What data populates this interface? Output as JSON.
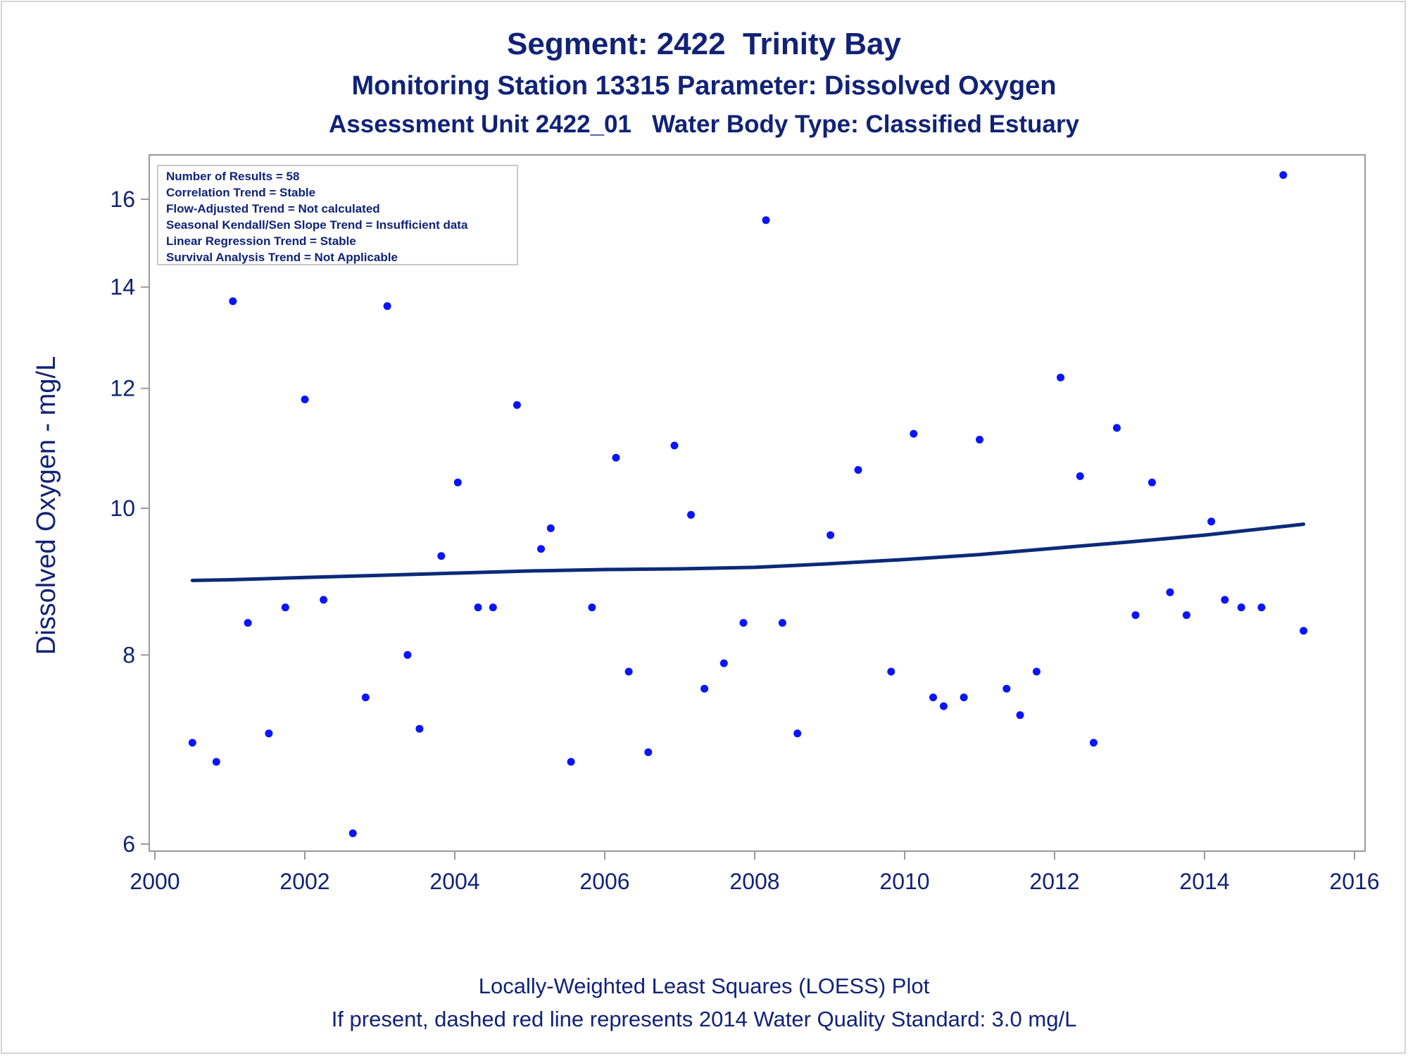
{
  "chart_data": {
    "type": "scatter",
    "title": "Segment: 2422  Trinity Bay",
    "subtitles": [
      "Monitoring Station 13315 Parameter: Dissolved Oxygen",
      "Assessment Unit 2422_01   Water Body Type: Classified Estuary"
    ],
    "xlabel": "",
    "ylabel": "Dissolved Oxygen - mg/L",
    "xlim": [
      2000,
      2016
    ],
    "ylim": [
      5.9,
      16.8
    ],
    "y_scale": "log",
    "grid": false,
    "x_ticks": [
      "2000",
      "2002",
      "2004",
      "2006",
      "2008",
      "2010",
      "2012",
      "2014",
      "2016"
    ],
    "y_ticks": [
      "6",
      "8",
      "10",
      "12",
      "14",
      "16"
    ],
    "stats_box": {
      "placement": "top-left",
      "lines": [
        "Number of Results = 58",
        "Correlation Trend = Stable",
        "Flow-Adjusted Trend = Not calculated",
        "Seasonal Kendall/Sen Slope Trend = Insufficient data",
        "Linear Regression Trend = Stable",
        "Survival Analysis Trend = Not Applicable"
      ]
    },
    "footnotes": [
      "Locally-Weighted Least Squares (LOESS) Plot",
      "If present, dashed red line represents 2014 Water Quality Standard: 3.0 mg/L"
    ],
    "series": [
      {
        "type": "scatter",
        "color": "#0a14ff",
        "points": [
          [
            2000.5,
            7.0
          ],
          [
            2000.82,
            6.8
          ],
          [
            2001.04,
            13.7
          ],
          [
            2001.24,
            8.4
          ],
          [
            2001.52,
            7.1
          ],
          [
            2001.74,
            8.6
          ],
          [
            2002.0,
            11.8
          ],
          [
            2002.25,
            8.7
          ],
          [
            2002.64,
            6.1
          ],
          [
            2002.81,
            7.5
          ],
          [
            2003.1,
            13.6
          ],
          [
            2003.37,
            8.0
          ],
          [
            2003.53,
            7.15
          ],
          [
            2003.82,
            9.3
          ],
          [
            2004.04,
            10.4
          ],
          [
            2004.31,
            8.6
          ],
          [
            2004.51,
            8.6
          ],
          [
            2004.83,
            11.7
          ],
          [
            2005.15,
            9.4
          ],
          [
            2005.28,
            9.7
          ],
          [
            2005.55,
            6.8
          ],
          [
            2005.83,
            8.6
          ],
          [
            2006.15,
            10.8
          ],
          [
            2006.32,
            7.8
          ],
          [
            2006.58,
            6.9
          ],
          [
            2006.93,
            11.0
          ],
          [
            2007.15,
            9.9
          ],
          [
            2007.33,
            7.6
          ],
          [
            2007.59,
            7.9
          ],
          [
            2007.85,
            8.4
          ],
          [
            2008.15,
            15.5
          ],
          [
            2008.37,
            8.4
          ],
          [
            2008.57,
            7.1
          ],
          [
            2009.01,
            9.6
          ],
          [
            2009.38,
            10.6
          ],
          [
            2009.82,
            7.8
          ],
          [
            2010.12,
            11.2
          ],
          [
            2010.38,
            7.5
          ],
          [
            2010.52,
            7.4
          ],
          [
            2010.79,
            7.5
          ],
          [
            2011.0,
            11.1
          ],
          [
            2011.36,
            7.6
          ],
          [
            2011.54,
            7.3
          ],
          [
            2011.76,
            7.8
          ],
          [
            2012.08,
            12.2
          ],
          [
            2012.34,
            10.5
          ],
          [
            2012.52,
            7.0
          ],
          [
            2012.83,
            11.3
          ],
          [
            2013.08,
            8.5
          ],
          [
            2013.3,
            10.4
          ],
          [
            2013.54,
            8.8
          ],
          [
            2013.76,
            8.5
          ],
          [
            2014.09,
            9.8
          ],
          [
            2014.27,
            8.7
          ],
          [
            2014.49,
            8.6
          ],
          [
            2014.76,
            8.6
          ],
          [
            2015.05,
            16.6
          ],
          [
            2015.32,
            8.3
          ]
        ]
      },
      {
        "type": "line",
        "color": "#0b2a78",
        "x": [
          2000.5,
          2001.0,
          2002.0,
          2003.0,
          2004.0,
          2005.0,
          2006.0,
          2007.0,
          2008.0,
          2009.0,
          2010.0,
          2011.0,
          2012.0,
          2013.0,
          2014.0,
          2015.32
        ],
        "y": [
          8.96,
          8.97,
          9.0,
          9.03,
          9.06,
          9.09,
          9.11,
          9.12,
          9.14,
          9.19,
          9.25,
          9.32,
          9.41,
          9.5,
          9.6,
          9.76
        ]
      }
    ]
  }
}
